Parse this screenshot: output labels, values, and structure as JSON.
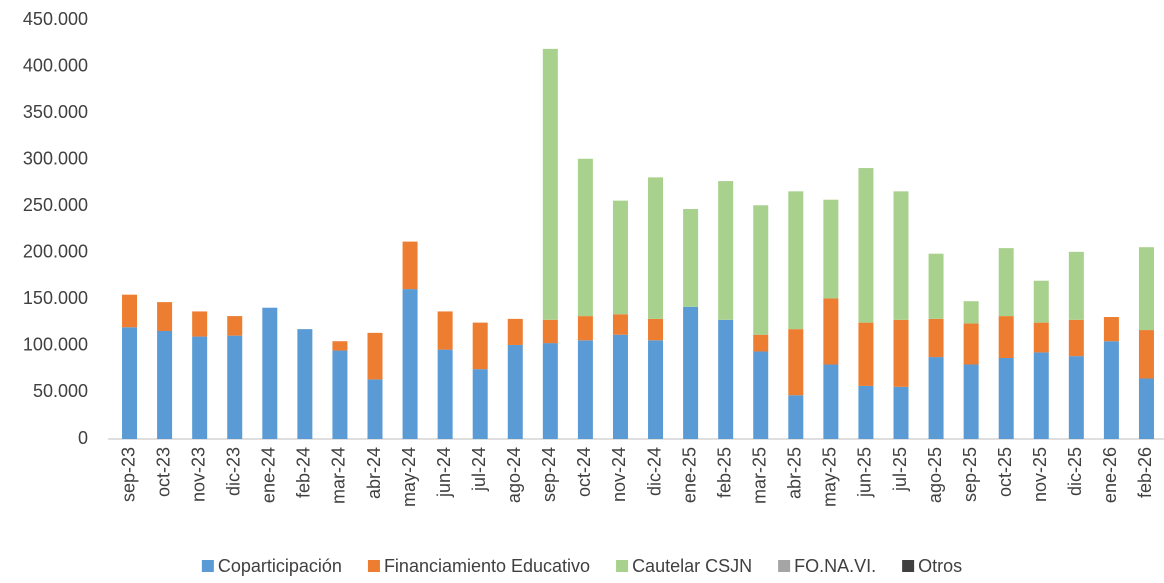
{
  "chart_data": {
    "type": "stacked_bar",
    "categories": [
      "sep-23",
      "oct-23",
      "nov-23",
      "dic-23",
      "ene-24",
      "feb-24",
      "mar-24",
      "abr-24",
      "may-24",
      "jun-24",
      "jul-24",
      "ago-24",
      "sep-24",
      "oct-24",
      "nov-24",
      "dic-24",
      "ene-25",
      "feb-25",
      "mar-25",
      "abr-25",
      "may-25",
      "jun-25",
      "jul-25",
      "ago-25",
      "sep-25",
      "oct-25",
      "nov-25",
      "dic-25",
      "ene-26",
      "feb-26"
    ],
    "series": [
      {
        "name": "Coparticipación",
        "color": "#5b9bd5",
        "values": [
          120000,
          116000,
          110000,
          111000,
          141000,
          118000,
          95000,
          64000,
          161000,
          96000,
          75000,
          101000,
          103000,
          106000,
          112000,
          106000,
          142000,
          128000,
          94000,
          47000,
          80000,
          57000,
          56000,
          88000,
          80000,
          87000,
          93000,
          89000,
          105000,
          65000
        ]
      },
      {
        "name": "Financiamiento Educativo",
        "color": "#ed7d31",
        "values": [
          35000,
          31000,
          27000,
          21000,
          0,
          0,
          10000,
          50000,
          51000,
          41000,
          50000,
          28000,
          25000,
          26000,
          22000,
          23000,
          0,
          0,
          18000,
          71000,
          71000,
          68000,
          72000,
          41000,
          44000,
          45000,
          32000,
          39000,
          26000,
          52000
        ]
      },
      {
        "name": "Cautelar CSJN",
        "color": "#a9d18e",
        "values": [
          0,
          0,
          0,
          0,
          0,
          0,
          0,
          0,
          0,
          0,
          0,
          0,
          291000,
          169000,
          122000,
          152000,
          105000,
          149000,
          139000,
          148000,
          106000,
          166000,
          138000,
          70000,
          24000,
          73000,
          45000,
          73000,
          0,
          89000
        ]
      },
      {
        "name": "FO.NA.VI.",
        "color": "#a5a5a5",
        "values": [
          0,
          0,
          0,
          0,
          0,
          0,
          0,
          0,
          0,
          0,
          0,
          0,
          0,
          0,
          0,
          0,
          0,
          0,
          0,
          0,
          0,
          0,
          0,
          0,
          0,
          0,
          0,
          0,
          0,
          0
        ]
      },
      {
        "name": "Otros",
        "color": "#404040",
        "values": [
          0,
          0,
          0,
          0,
          0,
          0,
          0,
          0,
          0,
          0,
          0,
          0,
          0,
          0,
          0,
          0,
          0,
          0,
          0,
          0,
          0,
          0,
          0,
          0,
          0,
          0,
          0,
          0,
          0,
          0
        ]
      }
    ],
    "ylim": [
      0,
      450000
    ],
    "yticks": [
      0,
      {
        "value": 50000,
        "label": "50.000"
      },
      {
        "value": 100000,
        "label": "100.000"
      },
      {
        "value": 150000,
        "label": "150.000"
      },
      {
        "value": 200000,
        "label": "200.000"
      },
      {
        "value": 250000,
        "label": "250.000"
      },
      {
        "value": 300000,
        "label": "300.000"
      },
      {
        "value": 350000,
        "label": "350.000"
      },
      {
        "value": 400000,
        "label": "400.000"
      },
      {
        "value": 450000,
        "label": "450.000"
      }
    ],
    "grid": false,
    "legend": "bottom"
  }
}
